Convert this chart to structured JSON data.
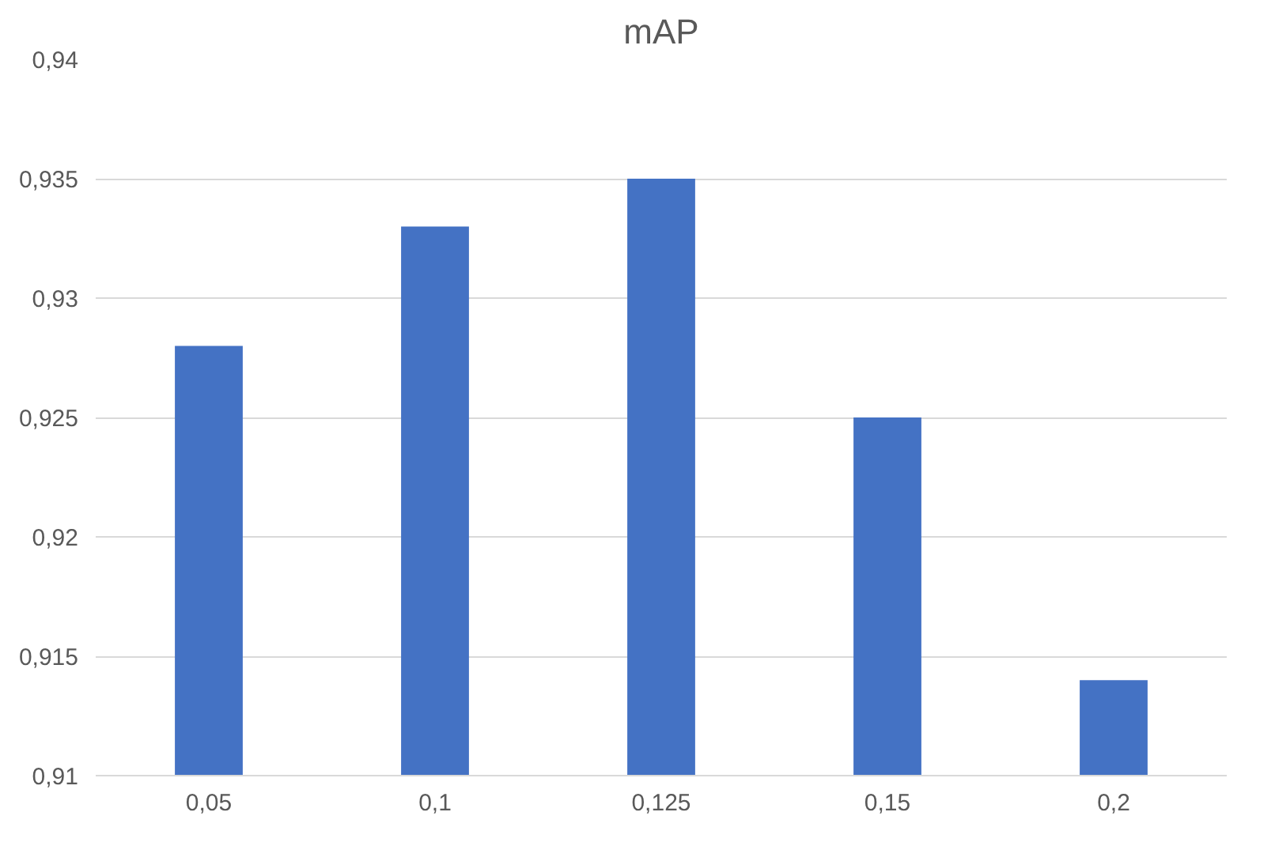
{
  "chart_data": {
    "type": "bar",
    "title": "mAP",
    "categories": [
      "0,05",
      "0,1",
      "0,125",
      "0,15",
      "0,2"
    ],
    "values": [
      0.928,
      0.933,
      0.935,
      0.925,
      0.914
    ],
    "color": "#4472c4",
    "ylim": [
      0.91,
      0.94
    ],
    "yticks": [
      {
        "value": 0.91,
        "label": "0,91"
      },
      {
        "value": 0.915,
        "label": "0,915"
      },
      {
        "value": 0.92,
        "label": "0,92"
      },
      {
        "value": 0.925,
        "label": "0,925"
      },
      {
        "value": 0.93,
        "label": "0,93"
      },
      {
        "value": 0.935,
        "label": "0,935"
      },
      {
        "value": 0.94,
        "label": "0,94"
      }
    ],
    "grid": "y"
  }
}
